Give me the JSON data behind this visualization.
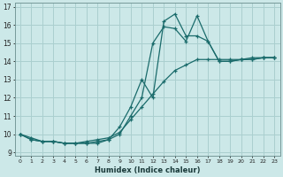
{
  "xlabel": "Humidex (Indice chaleur)",
  "background_color": "#cce8e8",
  "grid_color": "#aacfcf",
  "line_color": "#1a6b6b",
  "xlim": [
    -0.5,
    23.5
  ],
  "ylim": [
    8.8,
    17.2
  ],
  "yticks": [
    9,
    10,
    11,
    12,
    13,
    14,
    15,
    16,
    17
  ],
  "xticks": [
    0,
    1,
    2,
    3,
    4,
    5,
    6,
    7,
    8,
    9,
    10,
    11,
    12,
    13,
    14,
    15,
    16,
    17,
    18,
    19,
    20,
    21,
    22,
    23
  ],
  "line1_x": [
    0,
    1,
    2,
    3,
    4,
    5,
    6,
    7,
    8,
    9,
    10,
    11,
    12,
    13,
    14,
    15,
    16,
    17,
    18,
    19,
    20,
    21,
    22,
    23
  ],
  "line1_y": [
    10.0,
    9.7,
    9.6,
    9.6,
    9.5,
    9.5,
    9.5,
    9.5,
    9.7,
    10.4,
    11.5,
    13.0,
    12.0,
    16.2,
    16.6,
    15.4,
    15.4,
    15.1,
    14.0,
    14.0,
    14.1,
    14.1,
    14.2,
    14.2
  ],
  "line2_x": [
    0,
    1,
    2,
    3,
    4,
    5,
    6,
    7,
    8,
    9,
    10,
    11,
    12,
    13,
    14,
    15,
    16,
    17,
    18,
    19,
    20,
    21,
    22,
    23
  ],
  "line2_y": [
    10.0,
    9.7,
    9.6,
    9.6,
    9.5,
    9.5,
    9.5,
    9.6,
    9.7,
    10.0,
    11.0,
    12.0,
    15.0,
    15.9,
    15.8,
    15.1,
    16.5,
    15.1,
    14.0,
    14.0,
    14.1,
    14.1,
    14.2,
    14.2
  ],
  "line3_x": [
    0,
    1,
    2,
    3,
    4,
    5,
    6,
    7,
    8,
    9,
    10,
    11,
    12,
    13,
    14,
    15,
    16,
    17,
    18,
    19,
    20,
    21,
    22,
    23
  ],
  "line3_y": [
    10.0,
    9.8,
    9.6,
    9.6,
    9.5,
    9.5,
    9.6,
    9.7,
    9.8,
    10.1,
    10.8,
    11.5,
    12.2,
    12.9,
    13.5,
    13.8,
    14.1,
    14.1,
    14.1,
    14.1,
    14.1,
    14.2,
    14.2,
    14.2
  ]
}
